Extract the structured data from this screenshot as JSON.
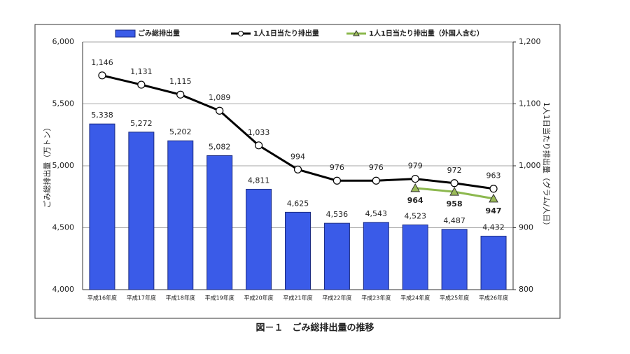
{
  "chart_data": {
    "type": "bar",
    "title": "図－１　ごみ総排出量の推移",
    "y_label": "ごみ総排出量（万トン）",
    "y2_label": "1人1日当たり排出量（グラム/人日）",
    "categories": [
      "平成16年度",
      "平成17年度",
      "平成18年度",
      "平成19年度",
      "平成20年度",
      "平成21年度",
      "平成22年度",
      "平成23年度",
      "平成24年度",
      "平成25年度",
      "平成26年度"
    ],
    "series": [
      {
        "name": "ごみ総排出量",
        "type": "bar",
        "color": "#3a5be8",
        "values": [
          5338,
          5272,
          5202,
          5082,
          4811,
          4625,
          4536,
          4543,
          4523,
          4487,
          4432
        ],
        "value_labels": [
          "5,338",
          "5,272",
          "5,202",
          "5,082",
          "4,811",
          "4,625",
          "4,536",
          "4,543",
          "4,523",
          "4,487",
          "4,432"
        ]
      },
      {
        "name": "1人1日当たり排出量",
        "type": "line",
        "axis": "y2",
        "color": "#000000",
        "values": [
          1146,
          1131,
          1115,
          1089,
          1033,
          994,
          976,
          976,
          979,
          972,
          963
        ],
        "value_labels": [
          "1,146",
          "1,131",
          "1,115",
          "1,089",
          "1,033",
          "994",
          "976",
          "976",
          "979",
          "972",
          "963"
        ]
      },
      {
        "name": "1人1日当たり排出量（外国人含む）",
        "type": "line",
        "axis": "y2",
        "color": "#8cb84e",
        "values": [
          null,
          null,
          null,
          null,
          null,
          null,
          null,
          null,
          964,
          958,
          947
        ],
        "value_labels": [
          null,
          null,
          null,
          null,
          null,
          null,
          null,
          null,
          "964",
          "958",
          "947"
        ]
      }
    ],
    "ylim": [
      4000,
      6000
    ],
    "yticks": [
      {
        "value": 4000,
        "label": "4,000"
      },
      {
        "value": 4500,
        "label": "4,500"
      },
      {
        "value": 5000,
        "label": "5,000"
      },
      {
        "value": 5500,
        "label": "5,500"
      },
      {
        "value": 6000,
        "label": "6,000"
      }
    ],
    "y2lim": [
      800,
      1200
    ],
    "y2ticks": [
      800,
      900,
      {
        "value": 1000,
        "label": "1,000"
      },
      {
        "value": 1100,
        "label": "1,100"
      },
      {
        "value": 1200,
        "label": "1,200"
      }
    ],
    "grid": true
  }
}
